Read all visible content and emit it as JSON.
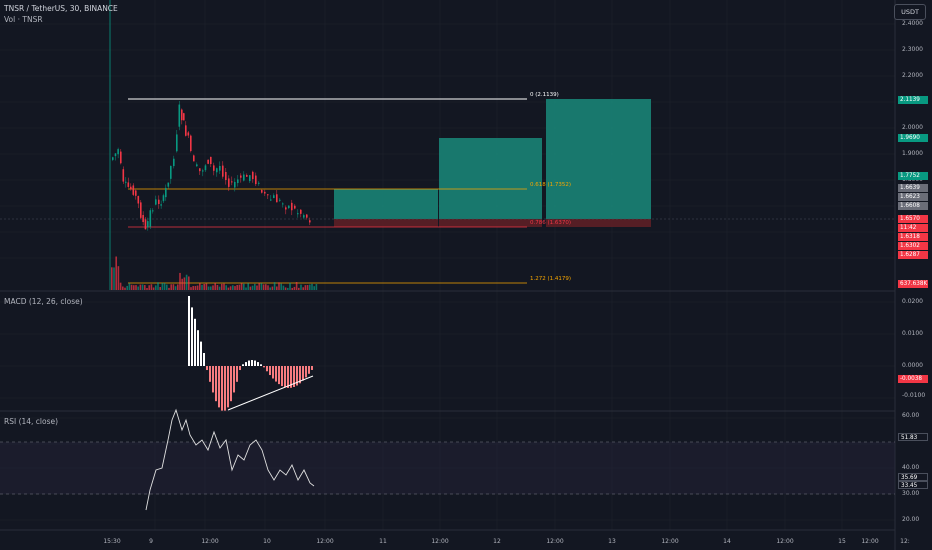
{
  "header": {
    "symbol": "TNSR / TetherUS, 30, BINANCE",
    "volume_label": "Vol · TNSR"
  },
  "currency_button": "USDT",
  "panes": {
    "macd_title": "MACD (12, 26, close)",
    "rsi_title": "RSI (14, close)"
  },
  "price_axis": {
    "ticks": [
      "2.4000",
      "2.3000",
      "2.2000",
      "2.1000",
      "2.0000",
      "1.9000",
      "1.8000",
      "1.7000",
      "1.6000",
      "1.5000"
    ]
  },
  "price_tags": [
    {
      "text": "2.1139",
      "color": "#089981"
    },
    {
      "text": "1.9690",
      "color": "#089981"
    },
    {
      "text": "1.7752",
      "color": "#089981"
    },
    {
      "text": "1.6639",
      "color": "#6a6d78"
    },
    {
      "text": "1.6623",
      "color": "#6a6d78"
    },
    {
      "text": "1.6608",
      "color": "#6a6d78"
    },
    {
      "text": "1.6570",
      "color": "#f23645"
    },
    {
      "text": "11:42",
      "color": "#f23645"
    },
    {
      "text": "1.6318",
      "color": "#f23645"
    },
    {
      "text": "1.6302",
      "color": "#f23645"
    },
    {
      "text": "1.6287",
      "color": "#f23645"
    },
    {
      "text": "637.638K",
      "color": "#f23645"
    }
  ],
  "macd_axis": {
    "ticks": [
      "0.0200",
      "0.0100",
      "0.0000",
      "-0.0100"
    ],
    "tag": {
      "text": "-0.0038",
      "color": "#ef9a9a"
    }
  },
  "rsi_axis": {
    "ticks": [
      "60.00",
      "40.00",
      "30.00",
      "20.00"
    ],
    "tags": [
      {
        "text": "51.83",
        "color": "#ffffff"
      },
      {
        "text": "35.69",
        "color": "#ffffff"
      },
      {
        "text": "33.45",
        "color": "#ffffff"
      }
    ]
  },
  "time_axis": {
    "labels": [
      "15:30",
      "9",
      "12:00",
      "10",
      "12:00",
      "11",
      "12:00",
      "12",
      "12:00",
      "13",
      "12:00",
      "14",
      "12:00",
      "15",
      "12:00",
      "12:"
    ]
  },
  "fib": {
    "top": "0 (2.1139)",
    "mid": "0.618 (1.7352)",
    "low": "0.786 (1.6370)",
    "ext": "1.272 (1.4179)"
  },
  "colors": {
    "bg": "#131722",
    "up": "#089981",
    "down": "#f23645",
    "grid": "#1e222d",
    "fib": "#f7a600",
    "target": "#1a8a7a",
    "stop": "#5d1f26"
  }
}
